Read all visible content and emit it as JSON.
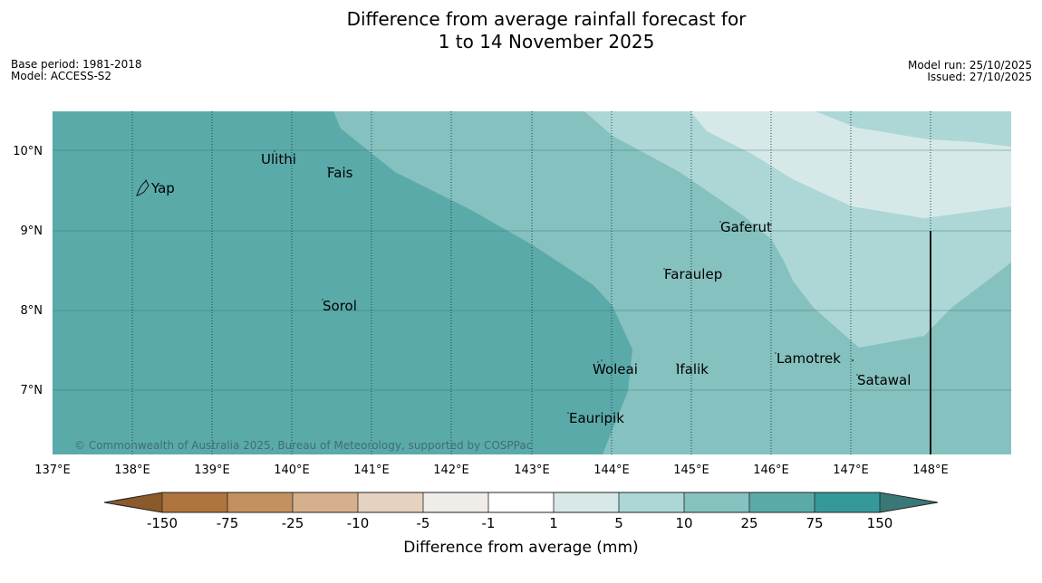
{
  "header": {
    "title_line1": "Difference from average rainfall forecast for",
    "title_line2": "1 to 14 November 2025",
    "base_period": "Base period: 1981-2018",
    "model": "Model: ACCESS-S2",
    "model_run": "Model run: 25/10/2025",
    "issued": "Issued: 27/10/2025"
  },
  "map": {
    "lat_labels": [
      "10°N",
      "9°N",
      "8°N",
      "7°N"
    ],
    "lon_labels": [
      "137°E",
      "138°E",
      "139°E",
      "140°E",
      "141°E",
      "142°E",
      "143°E",
      "144°E",
      "145°E",
      "146°E",
      "147°E",
      "148°E"
    ],
    "places": [
      "Yap",
      "Ulithi",
      "Fais",
      "Gaferut",
      "Faraulep",
      "Sorol",
      "Lamotrek",
      "Woleai",
      "Ifalik",
      "Satawal",
      "Eauripik"
    ],
    "copyright": "© Commonwealth of Australia 2025, Bureau of Meteorology, supported by COSPPac"
  },
  "colorbar": {
    "title": "Difference from average (mm)",
    "ticks": [
      "-150",
      "-75",
      "-25",
      "-10",
      "-5",
      "-1",
      "1",
      "5",
      "10",
      "25",
      "75",
      "150"
    ],
    "colors": {
      "lt_neg150": "#8a5a2b",
      "neg150_neg75": "#b0743e",
      "neg75_neg25": "#c3915f",
      "neg25_neg10": "#d6b08d",
      "neg10_neg5": "#e6d2c1",
      "neg5_neg1": "#f0ece8",
      "neg1_1": "#ffffff",
      "1_5": "#d6e9e8",
      "5_10": "#add7d6",
      "10_25": "#85c1bf",
      "25_75": "#5baaaa",
      "75_150": "#35999a",
      "gt_150": "#3a7877"
    }
  }
}
